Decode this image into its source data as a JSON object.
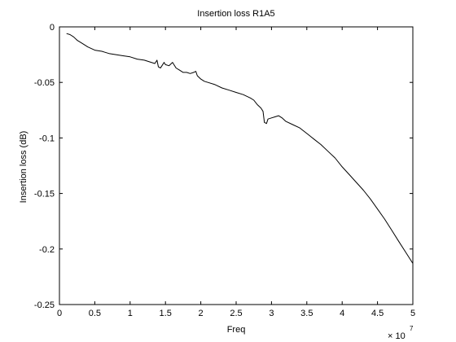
{
  "chart_data": {
    "type": "line",
    "title": "Insertion loss R1A5",
    "xlabel": "Freq",
    "ylabel": "Insertion loss (dB)",
    "x_multiplier_label": "× 10",
    "x_multiplier_exponent": "7",
    "xlim": [
      0,
      5
    ],
    "ylim": [
      -0.25,
      0
    ],
    "x_ticks": [
      "0",
      "0.5",
      "1",
      "1.5",
      "2",
      "2.5",
      "3",
      "3.5",
      "4",
      "4.5",
      "5"
    ],
    "y_ticks": [
      "0",
      "-0.05",
      "-0.1",
      "-0.15",
      "-0.2",
      "-0.25"
    ],
    "x_tick_values": [
      0,
      0.5,
      1,
      1.5,
      2,
      2.5,
      3,
      3.5,
      4,
      4.5,
      5
    ],
    "y_tick_values": [
      0,
      -0.05,
      -0.1,
      -0.15,
      -0.2,
      -0.25
    ],
    "grid": false,
    "line_color": "#000000",
    "series": [
      {
        "x": [
          0.1,
          0.15,
          0.2,
          0.25,
          0.3,
          0.35,
          0.4,
          0.5,
          0.6,
          0.7,
          0.8,
          0.9,
          1.0,
          1.1,
          1.2,
          1.3,
          1.35,
          1.38,
          1.4,
          1.43,
          1.45,
          1.48,
          1.5,
          1.55,
          1.6,
          1.65,
          1.7,
          1.75,
          1.8,
          1.85,
          1.9,
          1.93,
          1.95,
          2.0,
          2.05,
          2.1,
          2.2,
          2.3,
          2.4,
          2.5,
          2.6,
          2.7,
          2.75,
          2.8,
          2.85,
          2.88,
          2.9,
          2.93,
          2.95,
          3.0,
          3.05,
          3.1,
          3.15,
          3.2,
          3.3,
          3.4,
          3.5,
          3.6,
          3.7,
          3.8,
          3.9,
          4.0,
          4.1,
          4.2,
          4.3,
          4.4,
          4.5,
          4.6,
          4.7,
          4.8,
          4.9,
          5.0
        ],
        "y": [
          -0.006,
          -0.007,
          -0.009,
          -0.012,
          -0.014,
          -0.016,
          -0.018,
          -0.021,
          -0.022,
          -0.024,
          -0.025,
          -0.026,
          -0.027,
          -0.029,
          -0.03,
          -0.032,
          -0.033,
          -0.03,
          -0.036,
          -0.037,
          -0.035,
          -0.032,
          -0.034,
          -0.035,
          -0.032,
          -0.037,
          -0.039,
          -0.041,
          -0.041,
          -0.042,
          -0.041,
          -0.04,
          -0.044,
          -0.047,
          -0.049,
          -0.05,
          -0.052,
          -0.055,
          -0.057,
          -0.059,
          -0.061,
          -0.064,
          -0.066,
          -0.07,
          -0.073,
          -0.076,
          -0.086,
          -0.087,
          -0.083,
          -0.082,
          -0.081,
          -0.08,
          -0.082,
          -0.085,
          -0.088,
          -0.091,
          -0.096,
          -0.101,
          -0.106,
          -0.112,
          -0.118,
          -0.126,
          -0.133,
          -0.14,
          -0.147,
          -0.155,
          -0.164,
          -0.173,
          -0.183,
          -0.193,
          -0.203,
          -0.213
        ]
      }
    ]
  }
}
